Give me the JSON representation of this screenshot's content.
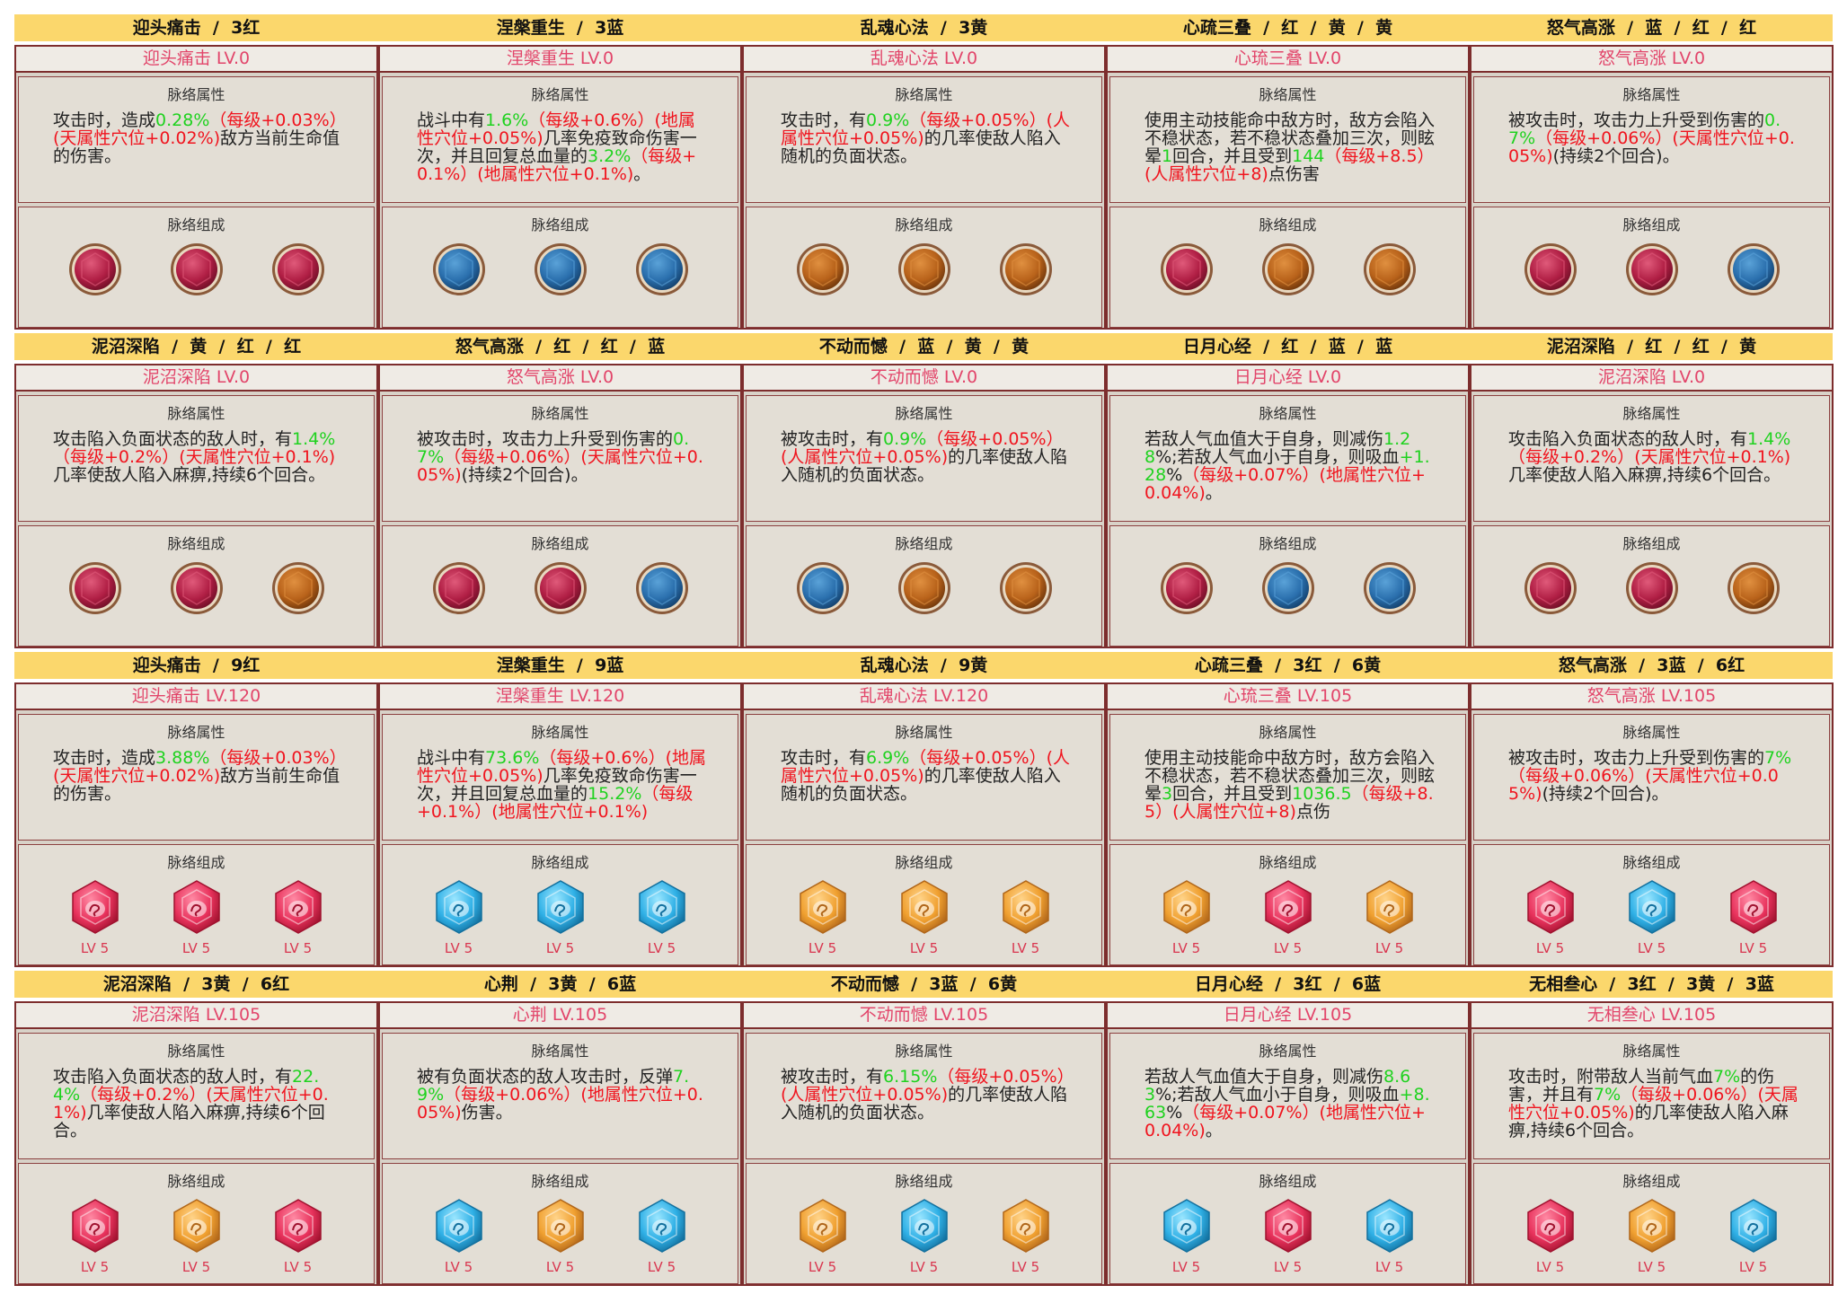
{
  "labels": {
    "attr": "脉络属性",
    "gems": "脉络组成"
  },
  "cards": [
    {
      "header": "迎头痛击  /  3红",
      "title": "迎头痛击 LV.0",
      "gem_style": "round",
      "description": [
        {
          "text": "攻击时，造成"
        },
        {
          "text": "0.28%",
          "color": "green"
        },
        {
          "text": "（每级+0.03%）(天属性穴位+0.02%)",
          "color": "red"
        },
        {
          "text": "敌方当前生命值的伤害。"
        }
      ],
      "gems": [
        {
          "color": "red"
        },
        {
          "color": "red"
        },
        {
          "color": "red"
        }
      ]
    },
    {
      "header": "涅槃重生  /  3蓝",
      "title": "涅槃重生 LV.0",
      "gem_style": "round",
      "description": [
        {
          "text": "战斗中有"
        },
        {
          "text": "1.6%",
          "color": "green"
        },
        {
          "text": "（每级+0.6%）(地属性穴位+0.05%)",
          "color": "red"
        },
        {
          "text": "几率免疫致命伤害一次，并且回复总血量的"
        },
        {
          "text": "3.2%",
          "color": "green"
        },
        {
          "text": "（每级+0.1%）(地属性穴位+0.1%)",
          "color": "red"
        },
        {
          "text": "。"
        }
      ],
      "gems": [
        {
          "color": "blue"
        },
        {
          "color": "blue"
        },
        {
          "color": "blue"
        }
      ]
    },
    {
      "header": "乱魂心法  /  3黄",
      "title": "乱魂心法 LV.0",
      "gem_style": "round",
      "description": [
        {
          "text": "攻击时，有"
        },
        {
          "text": "0.9%",
          "color": "green"
        },
        {
          "text": "（每级+0.05%）(人属性穴位+0.05%)",
          "color": "red"
        },
        {
          "text": "的几率使敌人陷入随机的负面状态。"
        }
      ],
      "gems": [
        {
          "color": "yellow"
        },
        {
          "color": "yellow"
        },
        {
          "color": "yellow"
        }
      ]
    },
    {
      "header": "心疏三叠  /  红  /  黄  /  黄",
      "title": "心琉三叠 LV.0",
      "gem_style": "round",
      "description": [
        {
          "text": "使用主动技能命中敌方时，敌方会陷入不稳状态，若不稳状态叠加三次，则眩晕"
        },
        {
          "text": "1",
          "color": "green"
        },
        {
          "text": "回合，并且受到"
        },
        {
          "text": "144",
          "color": "green"
        },
        {
          "text": "（每级+8.5）(人属性穴位+8)",
          "color": "red"
        },
        {
          "text": "点伤害"
        }
      ],
      "gems": [
        {
          "color": "red"
        },
        {
          "color": "yellow"
        },
        {
          "color": "yellow"
        }
      ]
    },
    {
      "header": "怒气高涨  /  蓝  /  红  /  红",
      "title": "怒气高涨 LV.0",
      "gem_style": "round",
      "description": [
        {
          "text": "被攻击时，攻击力上升受到伤害的"
        },
        {
          "text": "0.7%",
          "color": "green"
        },
        {
          "text": "（每级+0.06%）(天属性穴位+0.05%)",
          "color": "red"
        },
        {
          "text": "(持续2个回合)。"
        }
      ],
      "gems": [
        {
          "color": "red"
        },
        {
          "color": "red"
        },
        {
          "color": "blue"
        }
      ]
    },
    {
      "header": "泥沼深陷  /  黄  /  红  /  红",
      "title": "泥沼深陷 LV.0",
      "gem_style": "round",
      "description": [
        {
          "text": "攻击陷入负面状态的敌人时，有"
        },
        {
          "text": "1.4%",
          "color": "green"
        },
        {
          "text": "（每级+0.2%）(天属性穴位+0.1%)",
          "color": "red"
        },
        {
          "text": "几率使敌人陷入麻痹,持续6个回合。"
        }
      ],
      "gems": [
        {
          "color": "red"
        },
        {
          "color": "red"
        },
        {
          "color": "yellow"
        }
      ]
    },
    {
      "header": "怒气高涨  /  红  /  红  /  蓝",
      "title": "怒气高涨 LV.0",
      "gem_style": "round",
      "description": [
        {
          "text": "被攻击时，攻击力上升受到伤害的"
        },
        {
          "text": "0.7%",
          "color": "green"
        },
        {
          "text": "（每级+0.06%）(天属性穴位+0.05%)",
          "color": "red"
        },
        {
          "text": "(持续2个回合)。"
        }
      ],
      "gems": [
        {
          "color": "red"
        },
        {
          "color": "red"
        },
        {
          "color": "blue"
        }
      ]
    },
    {
      "header": "不动而憾  /  蓝  /  黄  /  黄",
      "title": "不动而憾 LV.0",
      "gem_style": "round",
      "description": [
        {
          "text": "被攻击时，有"
        },
        {
          "text": "0.9%",
          "color": "green"
        },
        {
          "text": "（每级+0.05%）(人属性穴位+0.05%)",
          "color": "red"
        },
        {
          "text": "的几率使敌人陷入随机的负面状态。"
        }
      ],
      "gems": [
        {
          "color": "blue"
        },
        {
          "color": "yellow"
        },
        {
          "color": "yellow"
        }
      ]
    },
    {
      "header": "日月心经  /  红  /  蓝  /  蓝",
      "title": "日月心经 LV.0",
      "gem_style": "round",
      "description": [
        {
          "text": "若敌人气血值大于自身，则减伤"
        },
        {
          "text": "1.28",
          "color": "green"
        },
        {
          "text": "%;若敌人气血小于自身，则吸血"
        },
        {
          "text": "+1.28",
          "color": "green"
        },
        {
          "text": "%"
        },
        {
          "text": "（每级+0.07%）(地属性穴位+0.04%)",
          "color": "red"
        },
        {
          "text": "。"
        }
      ],
      "gems": [
        {
          "color": "red"
        },
        {
          "color": "blue"
        },
        {
          "color": "blue"
        }
      ]
    },
    {
      "header": "泥沼深陷  /  红  /  红  /  黄",
      "title": "泥沼深陷 LV.0",
      "gem_style": "round",
      "description": [
        {
          "text": "攻击陷入负面状态的敌人时，有"
        },
        {
          "text": "1.4%",
          "color": "green"
        },
        {
          "text": "（每级+0.2%）(天属性穴位+0.1%)",
          "color": "red"
        },
        {
          "text": "几率使敌人陷入麻痹,持续6个回合。"
        }
      ],
      "gems": [
        {
          "color": "red"
        },
        {
          "color": "red"
        },
        {
          "color": "yellow"
        }
      ]
    },
    {
      "header": "迎头痛击  /  9红",
      "title": "迎头痛击 LV.120",
      "gem_style": "faceted",
      "description": [
        {
          "text": "攻击时，造成"
        },
        {
          "text": "3.88%",
          "color": "green"
        },
        {
          "text": "（每级+0.03%）(天属性穴位+0.02%)",
          "color": "red"
        },
        {
          "text": "敌方当前生命值的伤害。"
        }
      ],
      "gems": [
        {
          "color": "red",
          "label": "LV 5"
        },
        {
          "color": "red",
          "label": "LV 5"
        },
        {
          "color": "red",
          "label": "LV 5"
        }
      ]
    },
    {
      "header": "涅槃重生  /  9蓝",
      "title": "涅槃重生 LV.120",
      "gem_style": "faceted",
      "description": [
        {
          "text": "战斗中有"
        },
        {
          "text": "73.6%",
          "color": "green"
        },
        {
          "text": "（每级+0.6%）(地属性穴位+0.05%)",
          "color": "red"
        },
        {
          "text": "几率免疫致命伤害一次，并且回复总血量的"
        },
        {
          "text": "15.2%",
          "color": "green"
        },
        {
          "text": "（每级+0.1%）(地属性穴位+0.1%)",
          "color": "red"
        }
      ],
      "gems": [
        {
          "color": "blue",
          "label": "LV 5"
        },
        {
          "color": "blue",
          "label": "LV 5"
        },
        {
          "color": "blue",
          "label": "LV 5"
        }
      ]
    },
    {
      "header": "乱魂心法  /  9黄",
      "title": "乱魂心法 LV.120",
      "gem_style": "faceted",
      "description": [
        {
          "text": "攻击时，有"
        },
        {
          "text": "6.9%",
          "color": "green"
        },
        {
          "text": "（每级+0.05%）(人属性穴位+0.05%)",
          "color": "red"
        },
        {
          "text": "的几率使敌人陷入随机的负面状态。"
        }
      ],
      "gems": [
        {
          "color": "yellow",
          "label": "LV 5"
        },
        {
          "color": "yellow",
          "label": "LV 5"
        },
        {
          "color": "yellow",
          "label": "LV 5"
        }
      ]
    },
    {
      "header": "心疏三叠  /  3红  /  6黄",
      "title": "心琉三叠 LV.105",
      "gem_style": "faceted",
      "description": [
        {
          "text": "使用主动技能命中敌方时，敌方会陷入不稳状态，若不稳状态叠加三次，则眩晕"
        },
        {
          "text": "3",
          "color": "green"
        },
        {
          "text": "回合，并且受到"
        },
        {
          "text": "1036.5",
          "color": "green"
        },
        {
          "text": "（每级+8.5）(人属性穴位+8)",
          "color": "red"
        },
        {
          "text": "点伤"
        }
      ],
      "gems": [
        {
          "color": "yellow",
          "label": "LV 5"
        },
        {
          "color": "red",
          "label": "LV 5"
        },
        {
          "color": "yellow",
          "label": "LV 5"
        }
      ]
    },
    {
      "header": "怒气高涨  /  3蓝  /  6红",
      "title": "怒气高涨 LV.105",
      "gem_style": "faceted",
      "description": [
        {
          "text": "被攻击时，攻击力上升受到伤害的"
        },
        {
          "text": "7%",
          "color": "green"
        },
        {
          "text": "（每级+0.06%）(天属性穴位+0.05%)",
          "color": "red"
        },
        {
          "text": "(持续2个回合)。"
        }
      ],
      "gems": [
        {
          "color": "red",
          "label": "LV 5"
        },
        {
          "color": "blue",
          "label": "LV 5"
        },
        {
          "color": "red",
          "label": "LV 5"
        }
      ]
    },
    {
      "header": "泥沼深陷  /  3黄  /  6红",
      "title": "泥沼深陷 LV.105",
      "gem_style": "faceted",
      "description": [
        {
          "text": "攻击陷入负面状态的敌人时，有"
        },
        {
          "text": "22.4%",
          "color": "green"
        },
        {
          "text": "（每级+0.2%）(天属性穴位+0.1%)",
          "color": "red"
        },
        {
          "text": "几率使敌人陷入麻痹,持续6个回合。"
        }
      ],
      "gems": [
        {
          "color": "red",
          "label": "LV 5"
        },
        {
          "color": "yellow",
          "label": "LV 5"
        },
        {
          "color": "red",
          "label": "LV 5"
        }
      ]
    },
    {
      "header": "心荆  /  3黄  /  6蓝",
      "title": "心荆 LV.105",
      "gem_style": "faceted",
      "description": [
        {
          "text": "被有负面状态的敌人攻击时，反弹"
        },
        {
          "text": "7.9%",
          "color": "green"
        },
        {
          "text": "（每级+0.06%）(地属性穴位+0.05%)",
          "color": "red"
        },
        {
          "text": "伤害。"
        }
      ],
      "gems": [
        {
          "color": "blue",
          "label": "LV 5"
        },
        {
          "color": "yellow",
          "label": "LV 5"
        },
        {
          "color": "blue",
          "label": "LV 5"
        }
      ]
    },
    {
      "header": "不动而憾  /  3蓝  /  6黄",
      "title": "不动而憾 LV.105",
      "gem_style": "faceted",
      "description": [
        {
          "text": "被攻击时，有"
        },
        {
          "text": "6.15%",
          "color": "green"
        },
        {
          "text": "（每级+0.05%）(人属性穴位+0.05%)",
          "color": "red"
        },
        {
          "text": "的几率使敌人陷入随机的负面状态。"
        }
      ],
      "gems": [
        {
          "color": "yellow",
          "label": "LV 5"
        },
        {
          "color": "blue",
          "label": "LV 5"
        },
        {
          "color": "yellow",
          "label": "LV 5"
        }
      ]
    },
    {
      "header": "日月心经  /  3红  /  6蓝",
      "title": "日月心经 LV.105",
      "gem_style": "faceted",
      "description": [
        {
          "text": "若敌人气血值大于自身，则减伤"
        },
        {
          "text": "8.63",
          "color": "green"
        },
        {
          "text": "%;若敌人气血小于自身，则吸血"
        },
        {
          "text": "+8.63",
          "color": "green"
        },
        {
          "text": "%"
        },
        {
          "text": "（每级+0.07%）(地属性穴位+0.04%)",
          "color": "red"
        },
        {
          "text": "。"
        }
      ],
      "gems": [
        {
          "color": "blue",
          "label": "LV 5"
        },
        {
          "color": "red",
          "label": "LV 5"
        },
        {
          "color": "blue",
          "label": "LV 5"
        }
      ]
    },
    {
      "header": "无相叁心  /  3红  /  3黄  /  3蓝",
      "title": "无相叁心 LV.105",
      "gem_style": "faceted",
      "description": [
        {
          "text": "攻击时，附带敌人当前气血"
        },
        {
          "text": "7%",
          "color": "green"
        },
        {
          "text": "的伤害，并且有"
        },
        {
          "text": "7%",
          "color": "green"
        },
        {
          "text": "（每级+0.06%）(天属性穴位+0.05%)",
          "color": "red"
        },
        {
          "text": "的几率使敌人陷入麻痹,持续6个回合。"
        }
      ],
      "gems": [
        {
          "color": "red",
          "label": "LV 5"
        },
        {
          "color": "yellow",
          "label": "LV 5"
        },
        {
          "color": "blue",
          "label": "LV 5"
        }
      ]
    }
  ]
}
